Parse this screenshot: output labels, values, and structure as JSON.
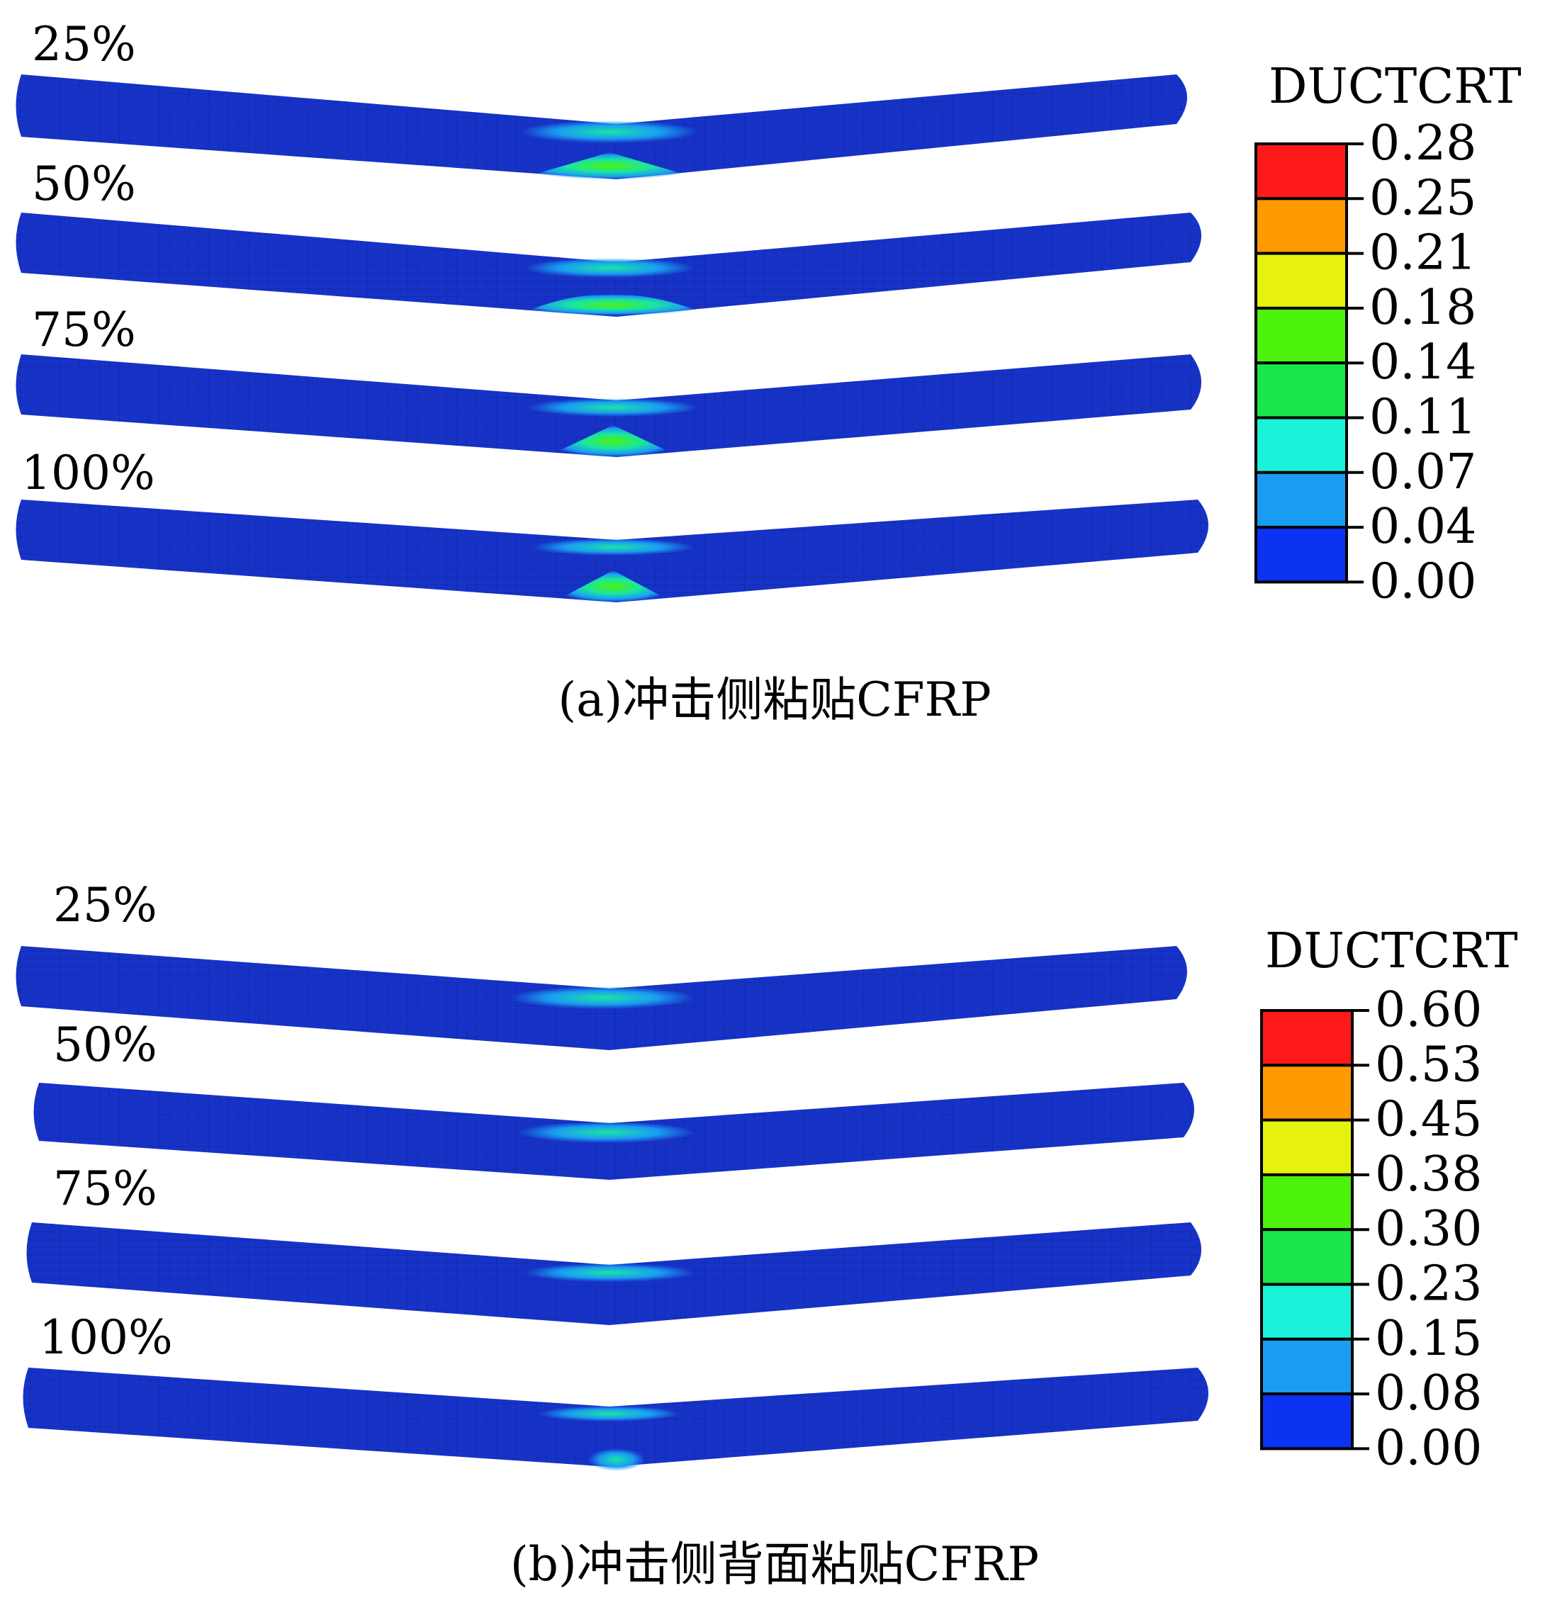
{
  "panels": [
    {
      "id": "a",
      "caption": "(a)冲击侧粘贴CFRP",
      "legend_title": "DUCTCRT",
      "legend_ticks": [
        "0.28",
        "0.25",
        "0.21",
        "0.18",
        "0.14",
        "0.11",
        "0.07",
        "0.04",
        "0.00"
      ],
      "beam_labels": [
        "25%",
        "50%",
        "75%",
        "100%"
      ]
    },
    {
      "id": "b",
      "caption": "(b)冲击侧背面粘贴CFRP",
      "legend_title": "DUCTCRT",
      "legend_ticks": [
        "0.60",
        "0.53",
        "0.45",
        "0.38",
        "0.30",
        "0.23",
        "0.15",
        "0.08",
        "0.00"
      ],
      "beam_labels": [
        "25%",
        "50%",
        "75%",
        "100%"
      ]
    }
  ],
  "legend_colors": [
    "#ff1a1a",
    "#ff9900",
    "#e6f20d",
    "#4df20d",
    "#1ae64d",
    "#1af2d9",
    "#1a9cf2",
    "#0d33f2"
  ],
  "beam_color": "#1733c7"
}
